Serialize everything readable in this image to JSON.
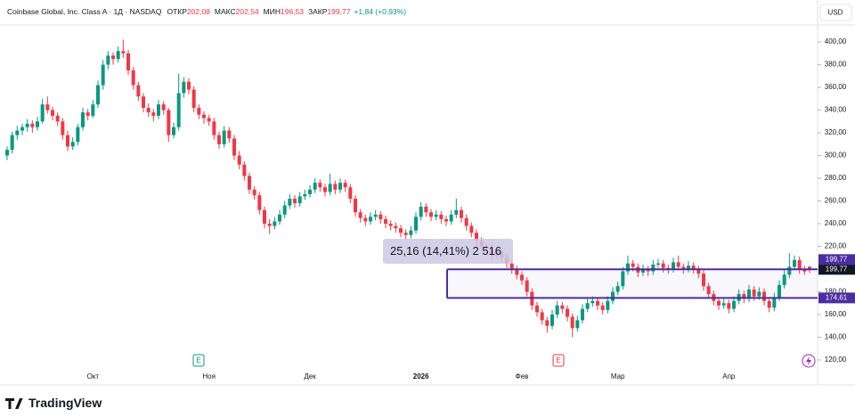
{
  "chart_data": {
    "type": "candlestick",
    "header": {
      "title": "Coinbase Global, Inc. Class A · 1Д · NASDAQ",
      "fields": [
        {
          "label": "ОТКР",
          "value": "202,08"
        },
        {
          "label": "МАКС",
          "value": "202,54"
        },
        {
          "label": "МИН",
          "value": "196,53"
        },
        {
          "label": "ЗАКР",
          "value": "199,77"
        }
      ],
      "change": "+1,84 (+0,93%)"
    },
    "currency": "USD",
    "branding": "TradingView",
    "earnings_icon": "E",
    "up_color": "#089981",
    "down_color": "#f23645",
    "range_color": "#4a2ea0",
    "ylim": [
      98,
      415
    ],
    "yticks": [
      {
        "value": 120,
        "label": "120,00"
      },
      {
        "value": 140,
        "label": "140,00"
      },
      {
        "value": 160,
        "label": "160,00"
      },
      {
        "value": 180,
        "label": "180,00"
      },
      {
        "value": 200,
        "label": "200,00"
      },
      {
        "value": 220,
        "label": "220,00"
      },
      {
        "value": 240,
        "label": "240,00"
      },
      {
        "value": 260,
        "label": "260,00"
      },
      {
        "value": 280,
        "label": "280,00"
      },
      {
        "value": 300,
        "label": "300,00"
      },
      {
        "value": 320,
        "label": "320,00"
      },
      {
        "value": 340,
        "label": "340,00"
      },
      {
        "value": 360,
        "label": "360,00"
      },
      {
        "value": 380,
        "label": "380,00"
      },
      {
        "value": 400,
        "label": "400,00"
      }
    ],
    "grid": false,
    "range": {
      "top": {
        "value": 199.77,
        "label": "199,77"
      },
      "bottom": {
        "value": 174.61,
        "label": "174,61"
      }
    },
    "last_price": {
      "value": 199.77,
      "label": "199,77"
    },
    "annotation": "25,16 (14,41%) 2 516",
    "categories": [
      null,
      null,
      null,
      null,
      null,
      null,
      null,
      null,
      null,
      null,
      null,
      null,
      null,
      null,
      null,
      null,
      null,
      "Окт",
      null,
      null,
      null,
      null,
      null,
      null,
      null,
      null,
      null,
      null,
      null,
      null,
      null,
      null,
      null,
      null,
      null,
      null,
      null,
      null,
      null,
      null,
      "Ноя",
      null,
      null,
      null,
      null,
      null,
      null,
      null,
      null,
      null,
      null,
      null,
      null,
      null,
      null,
      null,
      null,
      null,
      null,
      null,
      "Дек",
      null,
      null,
      null,
      null,
      null,
      null,
      null,
      null,
      null,
      null,
      null,
      null,
      null,
      null,
      null,
      null,
      null,
      null,
      null,
      null,
      null,
      "2026",
      null,
      null,
      null,
      null,
      null,
      null,
      null,
      null,
      null,
      null,
      null,
      null,
      null,
      null,
      null,
      null,
      null,
      null,
      null,
      "Фев",
      null,
      null,
      null,
      null,
      null,
      null,
      null,
      null,
      null,
      null,
      null,
      null,
      null,
      null,
      null,
      null,
      null,
      null,
      "Мар",
      null,
      null,
      null,
      null,
      null,
      null,
      null,
      null,
      null,
      null,
      null,
      null,
      null,
      null,
      null,
      null,
      null,
      null,
      null,
      null,
      null,
      "Апр",
      null,
      null,
      null,
      null,
      null,
      null,
      null,
      null,
      null,
      null,
      null,
      null,
      null,
      null,
      null,
      null
    ],
    "ohlc": [
      [
        300,
        308,
        296,
        305
      ],
      [
        305,
        321,
        302,
        318
      ],
      [
        318,
        326,
        314,
        322
      ],
      [
        322,
        328,
        318,
        325
      ],
      [
        325,
        332,
        321,
        328
      ],
      [
        328,
        331,
        320,
        325
      ],
      [
        325,
        334,
        322,
        330
      ],
      [
        330,
        350,
        328,
        345
      ],
      [
        345,
        352,
        337,
        340
      ],
      [
        340,
        343,
        331,
        335
      ],
      [
        335,
        338,
        326,
        330
      ],
      [
        330,
        333,
        314,
        318
      ],
      [
        318,
        322,
        304,
        308
      ],
      [
        308,
        316,
        305,
        312
      ],
      [
        312,
        328,
        309,
        325
      ],
      [
        325,
        342,
        322,
        338
      ],
      [
        338,
        341,
        331,
        335
      ],
      [
        335,
        349,
        333,
        345
      ],
      [
        345,
        366,
        342,
        362
      ],
      [
        362,
        384,
        358,
        380
      ],
      [
        380,
        392,
        376,
        388
      ],
      [
        388,
        391,
        380,
        385
      ],
      [
        385,
        396,
        382,
        392
      ],
      [
        392,
        402,
        386,
        390
      ],
      [
        390,
        393,
        371,
        375
      ],
      [
        375,
        378,
        358,
        362
      ],
      [
        362,
        365,
        348,
        352
      ],
      [
        352,
        355,
        338,
        342
      ],
      [
        342,
        346,
        334,
        338
      ],
      [
        338,
        341,
        330,
        335
      ],
      [
        335,
        349,
        332,
        345
      ],
      [
        345,
        348,
        336,
        340
      ],
      [
        340,
        342,
        312,
        318
      ],
      [
        318,
        329,
        315,
        325
      ],
      [
        325,
        372,
        322,
        355
      ],
      [
        355,
        369,
        351,
        365
      ],
      [
        365,
        368,
        354,
        358
      ],
      [
        358,
        361,
        338,
        342
      ],
      [
        342,
        345,
        332,
        336
      ],
      [
        336,
        339,
        328,
        333
      ],
      [
        333,
        336,
        326,
        330
      ],
      [
        330,
        333,
        314,
        318
      ],
      [
        318,
        321,
        306,
        310
      ],
      [
        310,
        326,
        307,
        322
      ],
      [
        322,
        325,
        311,
        315
      ],
      [
        315,
        318,
        296,
        300
      ],
      [
        300,
        304,
        288,
        292
      ],
      [
        292,
        295,
        278,
        282
      ],
      [
        282,
        285,
        266,
        270
      ],
      [
        270,
        273,
        261,
        265
      ],
      [
        265,
        268,
        248,
        252
      ],
      [
        252,
        255,
        236,
        240
      ],
      [
        240,
        244,
        231,
        238
      ],
      [
        238,
        246,
        235,
        242
      ],
      [
        242,
        252,
        239,
        248
      ],
      [
        248,
        260,
        245,
        256
      ],
      [
        256,
        266,
        253,
        262
      ],
      [
        262,
        265,
        254,
        258
      ],
      [
        258,
        268,
        255,
        264
      ],
      [
        264,
        270,
        261,
        266
      ],
      [
        266,
        274,
        263,
        270
      ],
      [
        270,
        280,
        267,
        276
      ],
      [
        276,
        279,
        268,
        272
      ],
      [
        272,
        275,
        264,
        268
      ],
      [
        268,
        284,
        265,
        275
      ],
      [
        275,
        278,
        266,
        270
      ],
      [
        270,
        280,
        267,
        276
      ],
      [
        276,
        279,
        268,
        272
      ],
      [
        272,
        275,
        258,
        262
      ],
      [
        262,
        265,
        246,
        250
      ],
      [
        250,
        253,
        241,
        245
      ],
      [
        245,
        248,
        238,
        242
      ],
      [
        242,
        250,
        239,
        246
      ],
      [
        246,
        252,
        243,
        248
      ],
      [
        248,
        251,
        240,
        244
      ],
      [
        244,
        247,
        236,
        240
      ],
      [
        240,
        243,
        234,
        238
      ],
      [
        238,
        241,
        232,
        236
      ],
      [
        236,
        239,
        228,
        232
      ],
      [
        232,
        235,
        226,
        230
      ],
      [
        230,
        238,
        227,
        234
      ],
      [
        234,
        250,
        231,
        246
      ],
      [
        246,
        259,
        243,
        255
      ],
      [
        255,
        258,
        246,
        250
      ],
      [
        250,
        253,
        242,
        246
      ],
      [
        246,
        252,
        243,
        248
      ],
      [
        248,
        251,
        240,
        244
      ],
      [
        244,
        247,
        238,
        242
      ],
      [
        242,
        252,
        239,
        248
      ],
      [
        248,
        262,
        245,
        252
      ],
      [
        252,
        255,
        241,
        245
      ],
      [
        245,
        248,
        234,
        238
      ],
      [
        238,
        241,
        228,
        232
      ],
      [
        232,
        235,
        221,
        225
      ],
      [
        225,
        228,
        216,
        220
      ],
      [
        220,
        223,
        214,
        218
      ],
      [
        218,
        221,
        208,
        212
      ],
      [
        212,
        219,
        209,
        215
      ],
      [
        215,
        218,
        206,
        210
      ],
      [
        210,
        213,
        201,
        205
      ],
      [
        205,
        208,
        196,
        200
      ],
      [
        200,
        203,
        191,
        195
      ],
      [
        195,
        198,
        186,
        190
      ],
      [
        190,
        193,
        176,
        180
      ],
      [
        180,
        183,
        164,
        168
      ],
      [
        168,
        171,
        158,
        162
      ],
      [
        162,
        165,
        151,
        155
      ],
      [
        155,
        158,
        144,
        150
      ],
      [
        150,
        164,
        147,
        160
      ],
      [
        160,
        172,
        157,
        168
      ],
      [
        168,
        171,
        161,
        165
      ],
      [
        165,
        168,
        154,
        158
      ],
      [
        158,
        161,
        140,
        148
      ],
      [
        148,
        159,
        145,
        155
      ],
      [
        155,
        169,
        152,
        165
      ],
      [
        165,
        174,
        162,
        170
      ],
      [
        170,
        176,
        167,
        172
      ],
      [
        172,
        175,
        164,
        168
      ],
      [
        168,
        171,
        160,
        164
      ],
      [
        164,
        176,
        161,
        172
      ],
      [
        172,
        184,
        169,
        180
      ],
      [
        180,
        189,
        177,
        185
      ],
      [
        185,
        202,
        182,
        198
      ],
      [
        198,
        212,
        195,
        205
      ],
      [
        205,
        208,
        198,
        202
      ],
      [
        202,
        205,
        193,
        197
      ],
      [
        197,
        204,
        194,
        200
      ],
      [
        200,
        203,
        194,
        198
      ],
      [
        198,
        208,
        195,
        204
      ],
      [
        204,
        209,
        201,
        205
      ],
      [
        205,
        208,
        197,
        201
      ],
      [
        201,
        204,
        196,
        200
      ],
      [
        200,
        210,
        197,
        206
      ],
      [
        206,
        212,
        199,
        202
      ],
      [
        202,
        205,
        196,
        200
      ],
      [
        200,
        207,
        197,
        203
      ],
      [
        203,
        206,
        196,
        200
      ],
      [
        200,
        203,
        192,
        196
      ],
      [
        196,
        199,
        181,
        185
      ],
      [
        185,
        188,
        174,
        178
      ],
      [
        178,
        181,
        168,
        172
      ],
      [
        172,
        175,
        164,
        168
      ],
      [
        168,
        174,
        165,
        170
      ],
      [
        170,
        173,
        161,
        165
      ],
      [
        165,
        176,
        162,
        172
      ],
      [
        172,
        182,
        169,
        178
      ],
      [
        178,
        181,
        170,
        174
      ],
      [
        174,
        186,
        171,
        182
      ],
      [
        182,
        185,
        172,
        176
      ],
      [
        176,
        184,
        173,
        180
      ],
      [
        180,
        183,
        168,
        172
      ],
      [
        172,
        175,
        162,
        166
      ],
      [
        166,
        179,
        163,
        175
      ],
      [
        175,
        190,
        172,
        186
      ],
      [
        186,
        199,
        183,
        195
      ],
      [
        195,
        214,
        192,
        202
      ],
      [
        202,
        212,
        199,
        208
      ],
      [
        208,
        211,
        196,
        200
      ],
      [
        200,
        203,
        195,
        197.93
      ],
      [
        202.08,
        202.54,
        196.53,
        199.77
      ]
    ]
  }
}
